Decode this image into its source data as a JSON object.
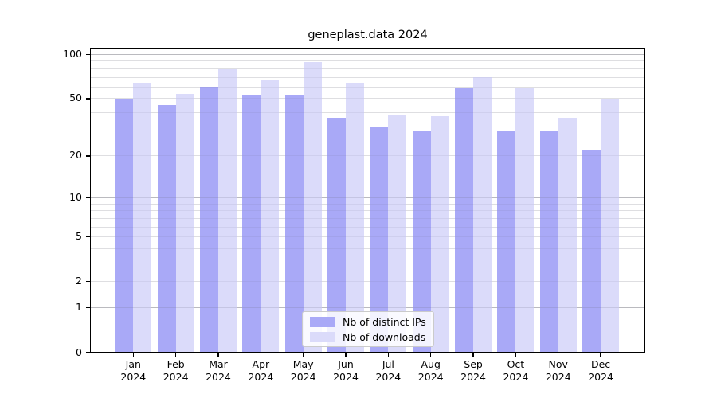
{
  "chart_data": {
    "type": "bar",
    "title": "geneplast.data 2024",
    "categories": [
      "Jan",
      "Feb",
      "Mar",
      "Apr",
      "May",
      "Jun",
      "Jul",
      "Aug",
      "Sep",
      "Oct",
      "Nov",
      "Dec"
    ],
    "year": "2024",
    "series": [
      {
        "name": "Nb of distinct IPs",
        "color": "#a9a9f7",
        "values": [
          50,
          45,
          60,
          53,
          53,
          37,
          32,
          30,
          59,
          30,
          30,
          22
        ]
      },
      {
        "name": "Nb of downloads",
        "color": "#dbdbfa",
        "values": [
          64,
          54,
          79,
          67,
          89,
          64,
          39,
          38,
          70,
          59,
          37,
          50
        ]
      }
    ],
    "xlabel": "",
    "ylabel": "",
    "ylim": [
      0,
      100
    ],
    "yscale": "log1p",
    "ytick_labels": [
      0,
      1,
      2,
      5,
      10,
      20,
      50,
      100
    ],
    "major_gridlines": [
      1,
      10,
      100
    ],
    "minor_gridlines": [
      2,
      3,
      4,
      5,
      6,
      7,
      8,
      9,
      20,
      30,
      40,
      50,
      60,
      70,
      80,
      90
    ],
    "grid": true,
    "legend_position": "lower center",
    "colors": {
      "axis": "#000000",
      "gridline_minor": "#ebebeb",
      "gridline_major": "#cdcdcd",
      "text": "#000000"
    }
  }
}
